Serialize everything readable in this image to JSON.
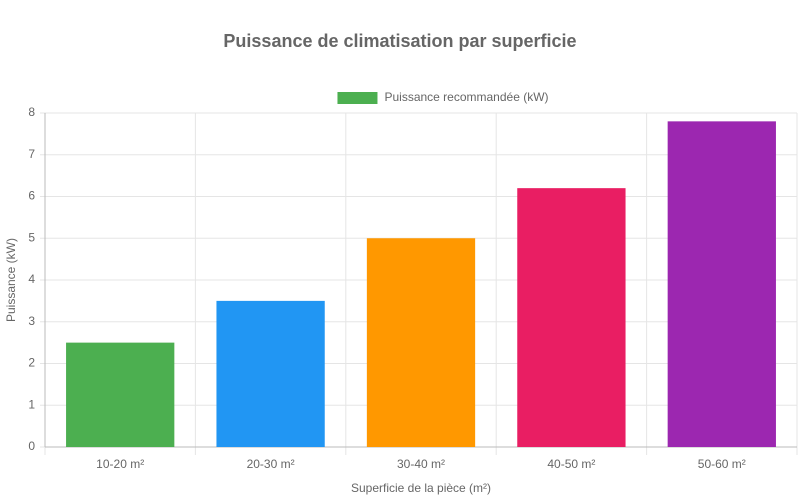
{
  "chart_data": {
    "type": "bar",
    "title": "Puissance de climatisation par superficie",
    "x_label": "Superficie de la pièce (m²)",
    "y_label": "Puissance (kW)",
    "categories": [
      "10-20 m²",
      "20-30 m²",
      "30-40 m²",
      "40-50 m²",
      "50-60 m²"
    ],
    "series": [
      {
        "name": "Puissance recommandée (kW)",
        "colors": [
          "#4caf50",
          "#2196f3",
          "#ff9800",
          "#e91e63",
          "#9c27b0"
        ],
        "values": [
          2.5,
          3.5,
          5,
          6.2,
          7.8
        ]
      }
    ],
    "ylim": [
      0,
      8
    ],
    "yticks": [
      0,
      1,
      2,
      3,
      4,
      5,
      6,
      7,
      8
    ],
    "grid": true,
    "legend": "top"
  }
}
